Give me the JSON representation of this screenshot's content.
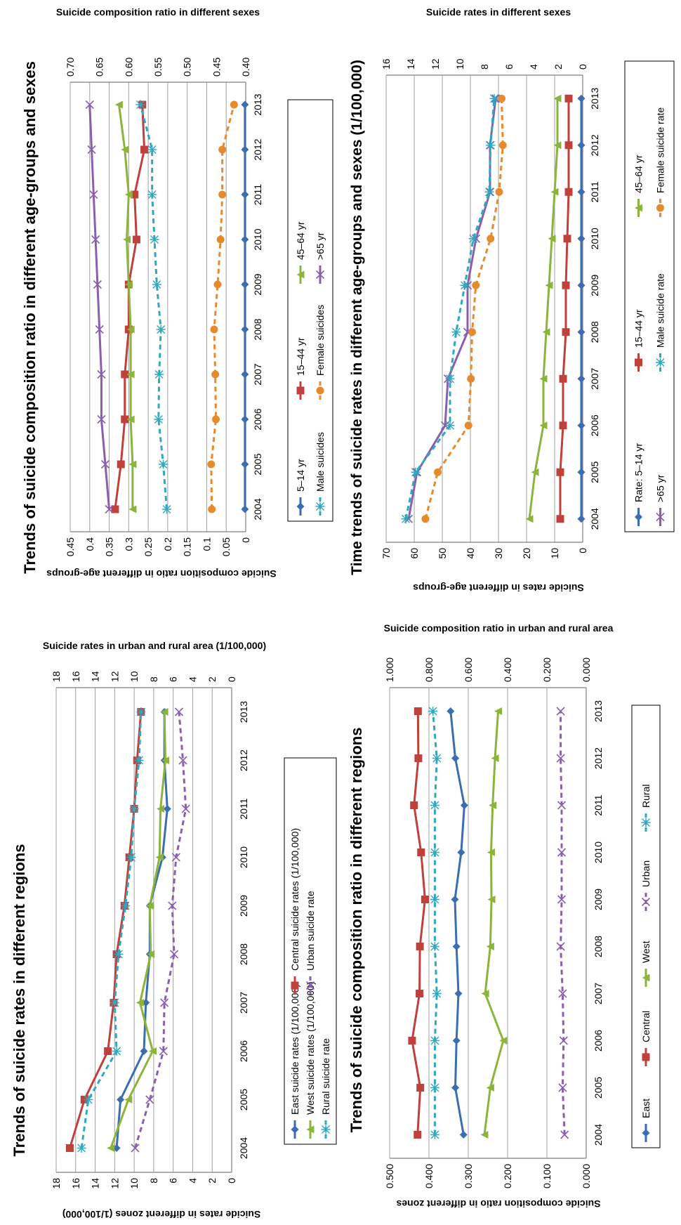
{
  "chart_data": [
    {
      "type": "line",
      "title": "Trends of suicide rates in different regions",
      "categories": [
        "2004",
        "2005",
        "2006",
        "2007",
        "2008",
        "2009",
        "2010",
        "2011",
        "2012",
        "2013"
      ],
      "ylabel_left": "Suicide rates in different zones (1/100,000)",
      "ylabel_right": "Suicide rates in urban and rural area (1/100,000)",
      "ylim_left": [
        0,
        18
      ],
      "ylim_right": [
        0,
        18
      ],
      "yticks_left": [
        "0",
        "2",
        "4",
        "6",
        "8",
        "10",
        "12",
        "14",
        "16",
        "18"
      ],
      "yticks_right": [
        "0",
        "2",
        "4",
        "6",
        "8",
        "10",
        "12",
        "14",
        "16",
        "18"
      ],
      "grid": true,
      "legend_position": "bottom",
      "series": [
        {
          "name": "East suicide rates (1/100,000)",
          "axis": "left",
          "color": "#3a6eb0",
          "marker": "diamond",
          "dashed": false,
          "values": [
            11.8,
            11.4,
            9.0,
            8.8,
            8.4,
            8.4,
            7.1,
            6.6,
            6.9,
            6.9
          ]
        },
        {
          "name": "Central suicide rates (1/100,000)",
          "axis": "left",
          "color": "#c0403c",
          "marker": "square",
          "dashed": false,
          "values": [
            16.6,
            15.1,
            12.7,
            12.1,
            11.8,
            11.0,
            10.5,
            10.0,
            9.7,
            9.3
          ]
        },
        {
          "name": "West suicide rates (1/100,000)",
          "axis": "left",
          "color": "#8bb43c",
          "marker": "triangle",
          "dashed": false,
          "values": [
            12.4,
            10.6,
            8.1,
            9.4,
            8.3,
            8.4,
            7.4,
            7.3,
            6.8,
            6.9
          ]
        },
        {
          "name": "Urban suicide rate",
          "axis": "right",
          "color": "#8a5fb0",
          "marker": "x",
          "dashed": true,
          "values": [
            9.9,
            8.4,
            7.0,
            6.9,
            5.9,
            6.1,
            5.7,
            4.7,
            5.0,
            5.4
          ]
        },
        {
          "name": "Rural suicide rate",
          "axis": "right",
          "color": "#2fa8c0",
          "marker": "star",
          "dashed": true,
          "values": [
            15.4,
            14.7,
            11.8,
            12.0,
            11.6,
            10.9,
            10.3,
            10.0,
            9.5,
            9.3
          ]
        }
      ]
    },
    {
      "type": "line",
      "title": "Trends of suicide composition ratio in different age-groups and sexes",
      "categories": [
        "2004",
        "2005",
        "2006",
        "2007",
        "2008",
        "2009",
        "2010",
        "2011",
        "2012",
        "2013"
      ],
      "ylabel_left": "Suicide composition ratio in different age-groups",
      "ylabel_right": "Suicide composition ratio in different sexes",
      "ylim_left": [
        0,
        0.45
      ],
      "ylim_right": [
        0.4,
        0.7
      ],
      "yticks_left": [
        "0",
        "0.05",
        "0.1",
        "0.15",
        "0.2",
        "0.25",
        "0.3",
        "0.35",
        "0.4",
        "0.45"
      ],
      "yticks_right": [
        "0.40",
        "0.45",
        "0.50",
        "0.55",
        "0.60",
        "0.65",
        "0.70"
      ],
      "grid": true,
      "legend_position": "bottom",
      "series": [
        {
          "name": "5–14 yr",
          "axis": "left",
          "color": "#3a6eb0",
          "marker": "diamond",
          "dashed": false,
          "values": [
            0.002,
            0.002,
            0.002,
            0.002,
            0.002,
            0.002,
            0.002,
            0.002,
            0.002,
            0.002
          ]
        },
        {
          "name": "15–44 yr",
          "axis": "left",
          "color": "#c0403c",
          "marker": "square",
          "dashed": false,
          "values": [
            0.335,
            0.32,
            0.31,
            0.31,
            0.3,
            0.3,
            0.28,
            0.285,
            0.26,
            0.265
          ]
        },
        {
          "name": "45–64 yr",
          "axis": "left",
          "color": "#8bb43c",
          "marker": "triangle",
          "dashed": false,
          "values": [
            0.29,
            0.29,
            0.295,
            0.295,
            0.295,
            0.3,
            0.305,
            0.3,
            0.31,
            0.325
          ]
        },
        {
          "name": "Male suicides",
          "axis": "right",
          "color": "#2fa8c0",
          "marker": "star",
          "dashed": true,
          "values": [
            0.535,
            0.541,
            0.549,
            0.548,
            0.545,
            0.552,
            0.556,
            0.56,
            0.56,
            0.58
          ]
        },
        {
          "name": "Female suicides",
          "axis": "right",
          "color": "#e68a2e",
          "marker": "circle",
          "dashed": true,
          "values": [
            0.458,
            0.459,
            0.451,
            0.452,
            0.454,
            0.448,
            0.443,
            0.44,
            0.44,
            0.42
          ]
        },
        {
          "name": ">65 yr",
          "axis": "left",
          "color": "#8a5fb0",
          "marker": "x",
          "dashed": false,
          "values": [
            0.35,
            0.36,
            0.37,
            0.37,
            0.375,
            0.38,
            0.385,
            0.39,
            0.395,
            0.4
          ]
        }
      ]
    },
    {
      "type": "line",
      "title": "Trends of suicide composition ratio in different regions",
      "categories": [
        "2004",
        "2005",
        "2006",
        "2007",
        "2008",
        "2009",
        "2010",
        "2011",
        "2012",
        "2013"
      ],
      "ylabel_left": "Suicide composition ratio in different zones",
      "ylabel_right": "Suicide composition ratio in urban and rural area",
      "ylim_left": [
        0,
        0.5
      ],
      "ylim_right": [
        0,
        1.0
      ],
      "yticks_left": [
        "0.000",
        "0.100",
        "0.200",
        "0.300",
        "0.400",
        "0.500"
      ],
      "yticks_right": [
        "0.000",
        "0.200",
        "0.400",
        "0.600",
        "0.800",
        "1.000"
      ],
      "grid": true,
      "legend_position": "bottom",
      "series": [
        {
          "name": "East",
          "axis": "left",
          "color": "#3a6eb0",
          "marker": "diamond",
          "dashed": false,
          "values": [
            0.312,
            0.333,
            0.33,
            0.325,
            0.33,
            0.334,
            0.318,
            0.31,
            0.333,
            0.345
          ]
        },
        {
          "name": "Central",
          "axis": "left",
          "color": "#c0403c",
          "marker": "square",
          "dashed": false,
          "values": [
            0.429,
            0.422,
            0.443,
            0.424,
            0.423,
            0.41,
            0.42,
            0.438,
            0.427,
            0.428
          ]
        },
        {
          "name": "West",
          "axis": "left",
          "color": "#8bb43c",
          "marker": "triangle",
          "dashed": false,
          "values": [
            0.259,
            0.244,
            0.211,
            0.257,
            0.244,
            0.241,
            0.242,
            0.238,
            0.232,
            0.224
          ]
        },
        {
          "name": "Urban",
          "axis": "right",
          "color": "#8a5fb0",
          "marker": "x",
          "dashed": true,
          "values": [
            0.11,
            0.12,
            0.115,
            0.12,
            0.13,
            0.125,
            0.125,
            0.125,
            0.13,
            0.13
          ]
        },
        {
          "name": "Rural",
          "axis": "right",
          "color": "#2fa8c0",
          "marker": "star",
          "dashed": true,
          "values": [
            0.77,
            0.77,
            0.77,
            0.76,
            0.77,
            0.77,
            0.77,
            0.77,
            0.76,
            0.78
          ]
        }
      ]
    },
    {
      "type": "line",
      "title": "Time trends of suicide rates in different age-groups and sexes (1/100,000)",
      "categories": [
        "2004",
        "2005",
        "2006",
        "2007",
        "2008",
        "2009",
        "2010",
        "2011",
        "2012",
        "2013"
      ],
      "ylabel_left": "Suicide rates in different age-groups",
      "ylabel_right": "Suicide rates in different sexes",
      "ylim_left": [
        0,
        70
      ],
      "ylim_right": [
        0,
        16
      ],
      "yticks_left": [
        "0",
        "10",
        "20",
        "30",
        "40",
        "50",
        "60",
        "70"
      ],
      "yticks_right": [
        "0",
        "2",
        "4",
        "6",
        "8",
        "10",
        "12",
        "14",
        "16"
      ],
      "grid": true,
      "legend_position": "bottom",
      "series": [
        {
          "name": "Rate: 5–14 yr",
          "axis": "left",
          "color": "#3a6eb0",
          "marker": "diamond",
          "dashed": false,
          "values": [
            0.5,
            0.5,
            0.5,
            0.5,
            0.5,
            0.5,
            0.5,
            0.5,
            0.5,
            0.5
          ]
        },
        {
          "name": "15–44 yr",
          "axis": "left",
          "color": "#c0403c",
          "marker": "square",
          "dashed": false,
          "values": [
            8,
            8,
            7,
            7,
            6,
            6,
            5.5,
            5,
            5,
            5
          ]
        },
        {
          "name": "45–64 yr",
          "axis": "left",
          "color": "#8bb43c",
          "marker": "triangle",
          "dashed": false,
          "values": [
            19,
            17,
            14,
            14,
            13,
            12,
            11,
            10,
            9,
            9
          ]
        },
        {
          "name": ">65 yr",
          "axis": "left",
          "color": "#8a5fb0",
          "marker": "x",
          "dashed": false,
          "values": [
            62,
            59,
            49,
            48,
            41,
            41,
            38,
            33,
            33,
            31
          ]
        },
        {
          "name": "Male suicide rate",
          "axis": "right",
          "color": "#2fa8c0",
          "marker": "star",
          "dashed": true,
          "values": [
            14.4,
            13.6,
            10.8,
            10.8,
            10.3,
            9.6,
            8.9,
            7.6,
            7.5,
            7.2
          ]
        },
        {
          "name": "Female suicide rate",
          "axis": "right",
          "color": "#e68a2e",
          "marker": "circle",
          "dashed": true,
          "values": [
            12.8,
            11.8,
            9.3,
            9.1,
            9.0,
            8.7,
            7.5,
            6.8,
            6.5,
            6.6
          ]
        }
      ]
    }
  ]
}
